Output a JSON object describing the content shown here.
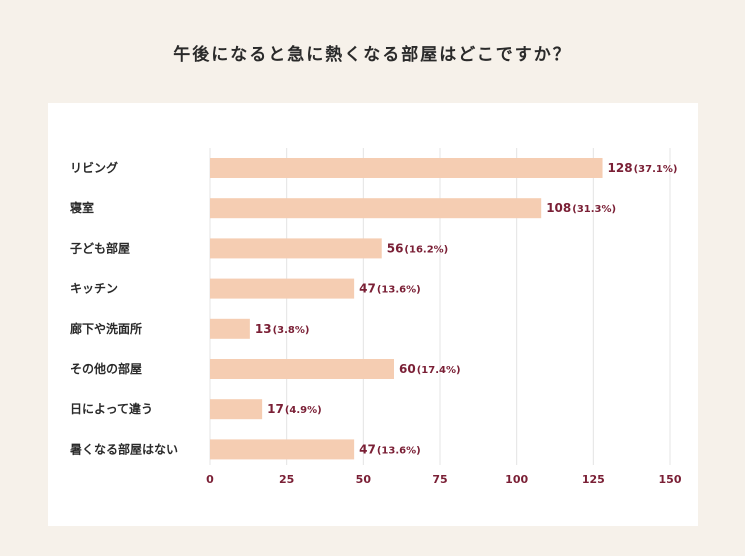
{
  "title": "午後になると急に熱くなる部屋はどこですか？",
  "chart_data": {
    "type": "bar",
    "orientation": "horizontal",
    "categories": [
      "リビング",
      "寝室",
      "子ども部屋",
      "キッチン",
      "廊下や洗面所",
      "その他の部屋",
      "日によって違う",
      "暑くなる部屋はない"
    ],
    "values": [
      128,
      108,
      56,
      47,
      13,
      60,
      17,
      47
    ],
    "percent_labels": [
      "(37.1%)",
      "(31.3%)",
      "(16.2%)",
      "(13.6%)",
      "(3.8%)",
      "(17.4%)",
      "(4.9%)",
      "(13.6%)"
    ],
    "xlim": [
      0,
      150
    ],
    "xticks": [
      0,
      25,
      50,
      75,
      100,
      125,
      150
    ],
    "grid": true,
    "bar_color": "#f5cdb2",
    "label_color": "#7a1f35"
  }
}
